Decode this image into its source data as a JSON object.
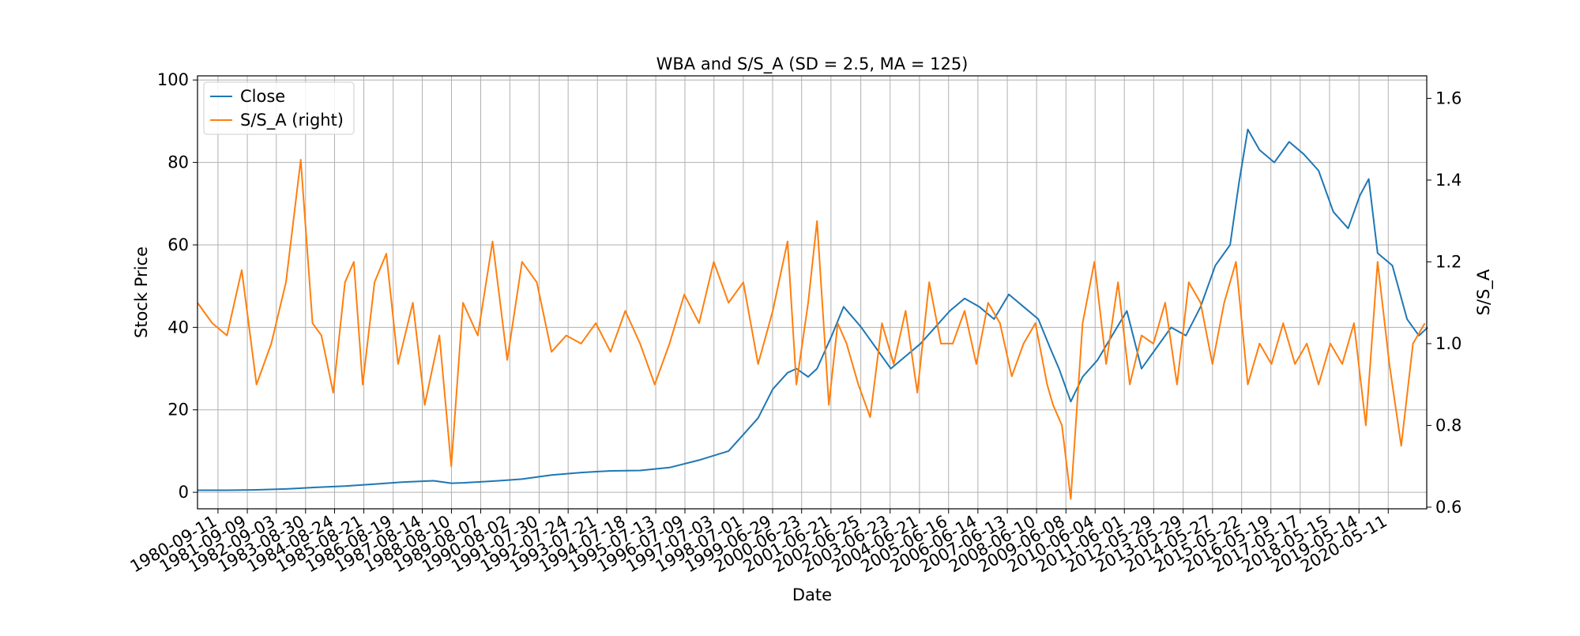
{
  "chart_data": {
    "type": "line",
    "title": "WBA and S/S_A (SD = 2.5, MA = 125)",
    "xlabel": "Date",
    "ylabel_left": "Stock Price",
    "ylabel_right": "S/S_A",
    "xlim": [
      "1980-01-01",
      "2021-08-31"
    ],
    "ylim_left": [
      -4,
      101
    ],
    "ylim_right": [
      0.596,
      1.655
    ],
    "yticks_left": [
      "0",
      "20",
      "40",
      "60",
      "80",
      "100"
    ],
    "yticks_right": [
      "0.6",
      "0.8",
      "1.0",
      "1.2",
      "1.4",
      "1.6"
    ],
    "x_tick_labels": [
      "1980-09-11",
      "1981-09-09",
      "1982-09-03",
      "1983-08-30",
      "1984-08-24",
      "1985-08-21",
      "1986-08-19",
      "1987-08-14",
      "1988-08-10",
      "1989-08-07",
      "1990-08-02",
      "1991-07-30",
      "1992-07-24",
      "1993-07-21",
      "1994-07-18",
      "1995-07-13",
      "1996-07-09",
      "1997-07-03",
      "1998-07-01",
      "1999-06-29",
      "2000-06-23",
      "2001-06-21",
      "2002-06-25",
      "2003-06-23",
      "2004-06-21",
      "2005-06-16",
      "2006-06-14",
      "2007-06-13",
      "2008-06-10",
      "2009-06-08",
      "2010-06-04",
      "2011-06-01",
      "2012-05-29",
      "2013-05-29",
      "2014-05-27",
      "2015-05-22",
      "2016-05-19",
      "2017-05-17",
      "2018-05-15",
      "2019-05-14",
      "2020-05-11"
    ],
    "grid": true,
    "legend_position": "upper-left",
    "series": [
      {
        "name": "Close",
        "axis": "left",
        "color": "#1f77b4",
        "x": [
          1980.0,
          1981.0,
          1982.0,
          1983.0,
          1984.0,
          1985.0,
          1986.0,
          1987.0,
          1988.0,
          1988.6,
          1989.0,
          1990.0,
          1991.0,
          1992.0,
          1993.0,
          1994.0,
          1995.0,
          1996.0,
          1997.0,
          1998.0,
          1998.5,
          1999.0,
          1999.5,
          2000.0,
          2000.3,
          2000.7,
          2001.0,
          2001.5,
          2001.9,
          2002.5,
          2003.0,
          2003.5,
          2004.0,
          2004.5,
          2005.0,
          2005.5,
          2006.0,
          2006.5,
          2007.0,
          2007.5,
          2008.0,
          2008.5,
          2008.9,
          2009.2,
          2009.6,
          2010.0,
          2010.5,
          2011.0,
          2011.5,
          2012.0,
          2012.5,
          2013.0,
          2013.5,
          2014.0,
          2014.5,
          2015.0,
          2015.3,
          2015.6,
          2016.0,
          2016.5,
          2017.0,
          2017.5,
          2018.0,
          2018.5,
          2019.0,
          2019.4,
          2019.7,
          2020.0,
          2020.5,
          2021.0,
          2021.4,
          2021.7
        ],
        "y": [
          0.5,
          0.5,
          0.6,
          0.8,
          1.2,
          1.5,
          2.0,
          2.5,
          2.8,
          2.2,
          2.3,
          2.7,
          3.2,
          4.2,
          4.8,
          5.2,
          5.3,
          6.0,
          7.8,
          10.0,
          14.0,
          18.0,
          25.0,
          29.0,
          30.0,
          28.0,
          30.0,
          38.0,
          45.0,
          40.0,
          35.0,
          30.0,
          33.0,
          36.0,
          40.0,
          44.0,
          47.0,
          45.0,
          42.0,
          48.0,
          45.0,
          42.0,
          35.0,
          30.0,
          22.0,
          28.0,
          32.0,
          38.0,
          44.0,
          30.0,
          35.0,
          40.0,
          38.0,
          45.0,
          55.0,
          60.0,
          75.0,
          88.0,
          83.0,
          80.0,
          85.0,
          82.0,
          78.0,
          68.0,
          64.0,
          72.0,
          76.0,
          58.0,
          55.0,
          42.0,
          38.0,
          40.0
        ]
      },
      {
        "name": "S/S_A (right)",
        "axis": "right",
        "color": "#ff7f0e",
        "x": [
          1980.0,
          1980.5,
          1981.0,
          1981.5,
          1982.0,
          1982.5,
          1983.0,
          1983.5,
          1983.9,
          1984.2,
          1984.6,
          1985.0,
          1985.3,
          1985.6,
          1986.0,
          1986.4,
          1986.8,
          1987.3,
          1987.7,
          1988.2,
          1988.6,
          1989.0,
          1989.5,
          1990.0,
          1990.5,
          1991.0,
          1991.5,
          1992.0,
          1992.5,
          1993.0,
          1993.5,
          1994.0,
          1994.5,
          1995.0,
          1995.5,
          1996.0,
          1996.5,
          1997.0,
          1997.5,
          1998.0,
          1998.5,
          1999.0,
          1999.5,
          2000.0,
          2000.3,
          2000.7,
          2001.0,
          2001.4,
          2001.7,
          2002.0,
          2002.4,
          2002.8,
          2003.2,
          2003.6,
          2004.0,
          2004.4,
          2004.8,
          2005.2,
          2005.6,
          2006.0,
          2006.4,
          2006.8,
          2007.2,
          2007.6,
          2008.0,
          2008.4,
          2008.8,
          2009.0,
          2009.3,
          2009.6,
          2010.0,
          2010.4,
          2010.8,
          2011.2,
          2011.6,
          2012.0,
          2012.4,
          2012.8,
          2013.2,
          2013.6,
          2014.0,
          2014.4,
          2014.8,
          2015.2,
          2015.6,
          2016.0,
          2016.4,
          2016.8,
          2017.2,
          2017.6,
          2018.0,
          2018.4,
          2018.8,
          2019.2,
          2019.6,
          2020.0,
          2020.4,
          2020.8,
          2021.2,
          2021.6
        ],
        "y": [
          1.1,
          1.05,
          1.02,
          1.18,
          0.9,
          1.0,
          1.15,
          1.45,
          1.05,
          1.02,
          0.88,
          1.15,
          1.2,
          0.9,
          1.15,
          1.22,
          0.95,
          1.1,
          0.85,
          1.02,
          0.7,
          1.1,
          1.02,
          1.25,
          0.96,
          1.2,
          1.15,
          0.98,
          1.02,
          1.0,
          1.05,
          0.98,
          1.08,
          1.0,
          0.9,
          1.0,
          1.12,
          1.05,
          1.2,
          1.1,
          1.15,
          0.95,
          1.08,
          1.25,
          0.9,
          1.1,
          1.3,
          0.85,
          1.05,
          1.0,
          0.9,
          0.82,
          1.05,
          0.95,
          1.08,
          0.88,
          1.15,
          1.0,
          1.0,
          1.08,
          0.95,
          1.1,
          1.05,
          0.92,
          1.0,
          1.05,
          0.9,
          0.85,
          0.8,
          0.62,
          1.05,
          1.2,
          0.95,
          1.15,
          0.9,
          1.02,
          1.0,
          1.1,
          0.9,
          1.15,
          1.1,
          0.95,
          1.1,
          1.2,
          0.9,
          1.0,
          0.95,
          1.05,
          0.95,
          1.0,
          0.9,
          1.0,
          0.95,
          1.05,
          0.8,
          1.2,
          0.95,
          0.75,
          1.0,
          1.05
        ]
      }
    ]
  }
}
